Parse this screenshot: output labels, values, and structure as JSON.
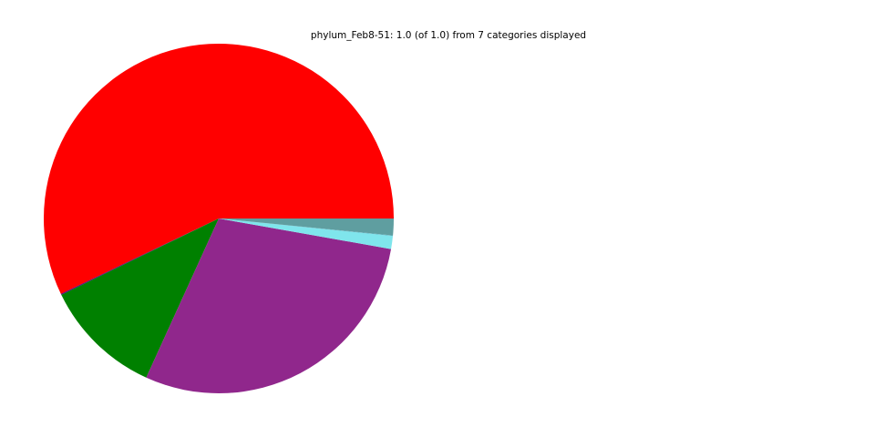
{
  "chart_data": {
    "type": "pie",
    "title": "phylum_Feb8-51: 1.0 (of 1.0) from 7 categories displayed",
    "start_angle_deg": 0,
    "direction": "counterclockwise",
    "legend": "none",
    "slices": [
      {
        "value": 0.571,
        "color": "#ff0000"
      },
      {
        "value": 0.001,
        "color": "#4b0082"
      },
      {
        "value": 0.11,
        "color": "#008000"
      },
      {
        "value": 0.29,
        "color": "#90278c"
      },
      {
        "value": 0.012,
        "color": "#7fe5ec"
      },
      {
        "value": 0.0005,
        "color": "#5cb8c8"
      },
      {
        "value": 0.0155,
        "color": "#5f9ea0"
      }
    ]
  }
}
